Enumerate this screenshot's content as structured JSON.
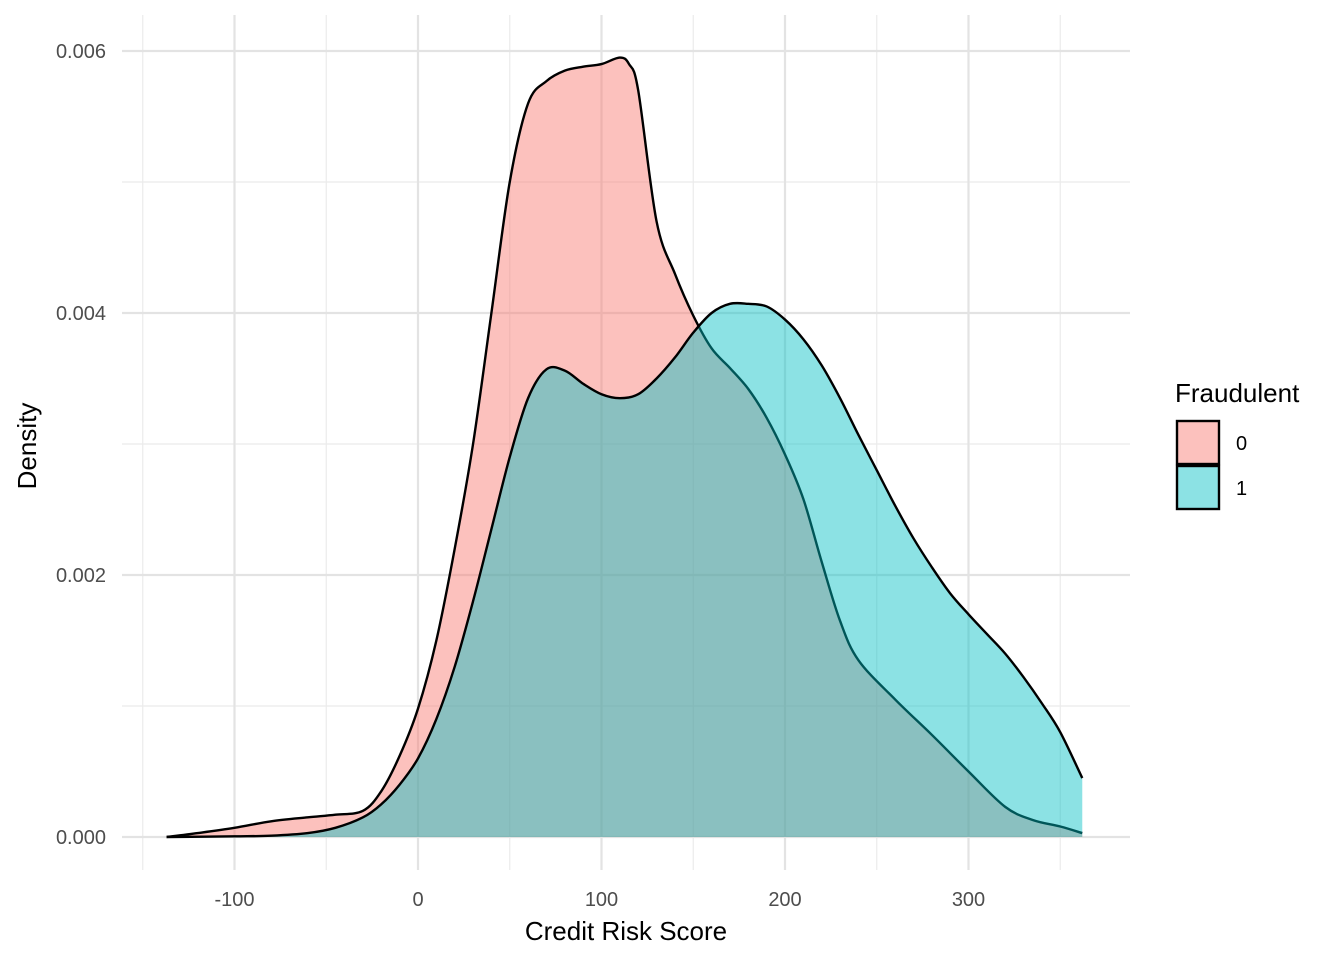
{
  "chart_data": {
    "type": "area",
    "xlabel": "Credit Risk Score",
    "ylabel": "Density",
    "xlim": [
      -150,
      385
    ],
    "ylim": [
      0,
      0.006
    ],
    "x_ticks": [
      -100,
      0,
      100,
      200,
      300
    ],
    "x_tick_labels": [
      "-100",
      "0",
      "100",
      "200",
      "300"
    ],
    "y_ticks": [
      0,
      0.002,
      0.004,
      0.006
    ],
    "y_tick_labels": [
      "0.000",
      "0.002",
      "0.004",
      "0.006"
    ],
    "grid": true,
    "legend": {
      "title": "Fraudulent",
      "position": "right",
      "entries": [
        "0",
        "1"
      ]
    },
    "series": [
      {
        "name": "0",
        "color": "#F8766D",
        "x": [
          -137,
          -120,
          -100,
          -80,
          -60,
          -45,
          -30,
          -20,
          -10,
          0,
          10,
          20,
          30,
          40,
          50,
          60,
          70,
          80,
          90,
          100,
          110,
          115,
          120,
          130,
          140,
          150,
          160,
          170,
          180,
          190,
          200,
          210,
          220,
          230,
          240,
          260,
          280,
          300,
          320,
          335,
          350,
          362
        ],
        "values": [
          0.0,
          3e-05,
          7e-05,
          0.00012,
          0.00015,
          0.00017,
          0.0002,
          0.00035,
          0.00062,
          0.00098,
          0.0015,
          0.0022,
          0.003,
          0.004,
          0.005,
          0.0056,
          0.00577,
          0.00585,
          0.00588,
          0.0059,
          0.00595,
          0.0059,
          0.0057,
          0.0047,
          0.0043,
          0.00398,
          0.00373,
          0.00358,
          0.00342,
          0.0032,
          0.00292,
          0.00258,
          0.0021,
          0.00165,
          0.00135,
          0.00105,
          0.00078,
          0.0005,
          0.00023,
          0.00013,
          8e-05,
          3e-05
        ]
      },
      {
        "name": "1",
        "color": "#00BFC4",
        "x": [
          -137,
          -100,
          -80,
          -60,
          -45,
          -30,
          -20,
          -10,
          0,
          10,
          20,
          30,
          40,
          50,
          60,
          70,
          80,
          90,
          100,
          110,
          120,
          130,
          140,
          150,
          160,
          170,
          180,
          190,
          200,
          210,
          220,
          230,
          240,
          250,
          260,
          270,
          280,
          290,
          300,
          310,
          320,
          330,
          340,
          350,
          362
        ],
        "values": [
          0.0,
          5e-06,
          1e-05,
          3e-05,
          7e-05,
          0.00015,
          0.00025,
          0.0004,
          0.0006,
          0.0009,
          0.0013,
          0.0018,
          0.00235,
          0.0029,
          0.00335,
          0.00357,
          0.00356,
          0.00346,
          0.00338,
          0.00335,
          0.00338,
          0.0035,
          0.00366,
          0.00385,
          0.004,
          0.00407,
          0.00407,
          0.00405,
          0.00395,
          0.0038,
          0.0036,
          0.00335,
          0.00307,
          0.0028,
          0.00253,
          0.00228,
          0.00206,
          0.00186,
          0.0017,
          0.00155,
          0.0014,
          0.00122,
          0.00102,
          0.0008,
          0.00045
        ]
      }
    ]
  }
}
